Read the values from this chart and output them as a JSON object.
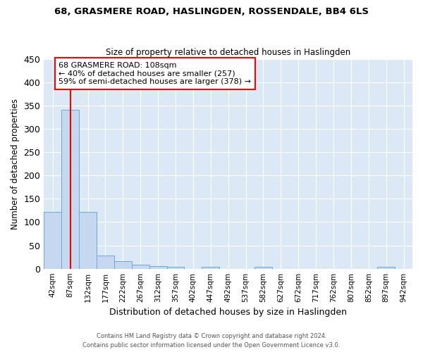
{
  "title": "68, GRASMERE ROAD, HASLINGDEN, ROSSENDALE, BB4 6LS",
  "subtitle": "Size of property relative to detached houses in Haslingden",
  "xlabel": "Distribution of detached houses by size in Haslingden",
  "ylabel": "Number of detached properties",
  "bin_labels": [
    "42sqm",
    "87sqm",
    "132sqm",
    "177sqm",
    "222sqm",
    "267sqm",
    "312sqm",
    "357sqm",
    "402sqm",
    "447sqm",
    "492sqm",
    "537sqm",
    "582sqm",
    "627sqm",
    "672sqm",
    "717sqm",
    "762sqm",
    "807sqm",
    "852sqm",
    "897sqm",
    "942sqm"
  ],
  "bar_heights": [
    122,
    340,
    122,
    28,
    16,
    8,
    5,
    4,
    0,
    4,
    0,
    0,
    4,
    0,
    0,
    0,
    0,
    0,
    0,
    4,
    0
  ],
  "bar_color": "#c5d8ef",
  "bar_edge_color": "#6aaad4",
  "annotation_text": "68 GRASMERE ROAD: 108sqm\n← 40% of detached houses are smaller (257)\n59% of semi-detached houses are larger (378) →",
  "annotation_box_color": "white",
  "annotation_box_edge_color": "red",
  "vline_color": "red",
  "vline_x": 1.5,
  "ylim": [
    0,
    450
  ],
  "yticks": [
    0,
    50,
    100,
    150,
    200,
    250,
    300,
    350,
    400,
    450
  ],
  "footer_line1": "Contains HM Land Registry data © Crown copyright and database right 2024.",
  "footer_line2": "Contains public sector information licensed under the Open Government Licence v3.0.",
  "plot_bg_color": "#dce8f5",
  "fig_bg_color": "white",
  "grid_color": "#b8cfe0"
}
